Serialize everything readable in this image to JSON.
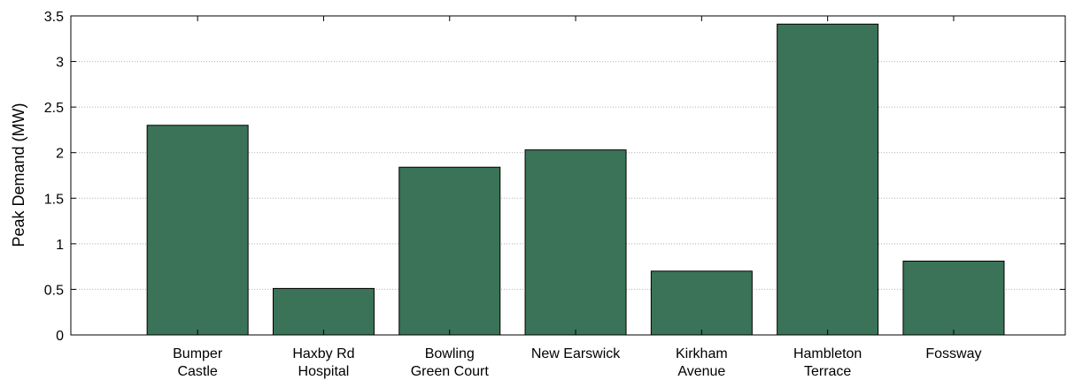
{
  "chart_data": {
    "type": "bar",
    "title": "",
    "xlabel": "",
    "ylabel": "Peak Demand (MW)",
    "ylim": [
      0,
      3.5
    ],
    "yticks": [
      "0",
      "0.5",
      "1",
      "1.5",
      "2",
      "2.5",
      "3",
      "3.5"
    ],
    "grid": true,
    "categories": [
      [
        "Bumper",
        "Castle"
      ],
      [
        "Haxby Rd",
        "Hospital"
      ],
      [
        "Bowling",
        "Green Court"
      ],
      [
        "New Earswick"
      ],
      [
        "Kirkham",
        "Avenue"
      ],
      [
        "Hambleton",
        "Terrace"
      ],
      [
        "Fossway"
      ]
    ],
    "values": [
      2.3,
      0.51,
      1.84,
      2.03,
      0.7,
      3.41,
      0.81
    ],
    "bar_color": "#3a7357"
  }
}
